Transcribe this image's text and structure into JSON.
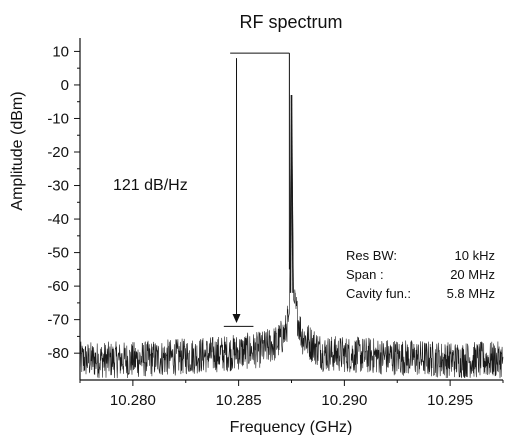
{
  "chart_data": {
    "type": "line",
    "title": "RF spectrum",
    "xlabel": "Frequency (GHz)",
    "ylabel": "Amplitude (dBm)",
    "xlim": [
      10.2775,
      10.2975
    ],
    "ylim": [
      -88,
      14
    ],
    "x_ticks": [
      10.28,
      10.285,
      10.29,
      10.295
    ],
    "x_tick_labels": [
      "10.280",
      "10.285",
      "10.290",
      "10.295"
    ],
    "y_ticks": [
      10,
      0,
      -10,
      -20,
      -30,
      -40,
      -50,
      -60,
      -70,
      -80
    ],
    "y_tick_labels": [
      "10",
      "0",
      "-10",
      "-20",
      "-30",
      "-40",
      "-50",
      "-60",
      "-70",
      "-80"
    ],
    "grid": false,
    "line_color": "#1a1a1a",
    "series": [
      {
        "peak_x": 10.2875,
        "peak_y": -3,
        "points": [
          [
            10.2775,
            -82
          ],
          [
            10.28,
            -82
          ],
          [
            10.2825,
            -81
          ],
          [
            10.2845,
            -80
          ],
          [
            10.286,
            -79
          ],
          [
            10.2868,
            -77
          ],
          [
            10.2872,
            -74
          ],
          [
            10.2874,
            -68
          ],
          [
            10.2875,
            -3
          ],
          [
            10.2876,
            -64
          ],
          [
            10.288,
            -75
          ],
          [
            10.289,
            -80
          ],
          [
            10.292,
            -81
          ],
          [
            10.295,
            -82
          ],
          [
            10.2975,
            -82
          ]
        ]
      }
    ],
    "annotations": {
      "noise_ratio_label": "121 dB/Hz",
      "top_marker_y": 9.5,
      "bottom_marker_y": -72,
      "arrow_x": 10.2849,
      "top_line_x_range": [
        10.2846,
        10.2874
      ],
      "bottom_line_x_range": [
        10.2843,
        10.2857
      ],
      "info": [
        {
          "label": "Res BW:",
          "value": "10 kHz"
        },
        {
          "label": "Span :",
          "value": "20 MHz"
        },
        {
          "label": "Cavity fun.:",
          "value": "5.8 MHz"
        }
      ]
    }
  }
}
